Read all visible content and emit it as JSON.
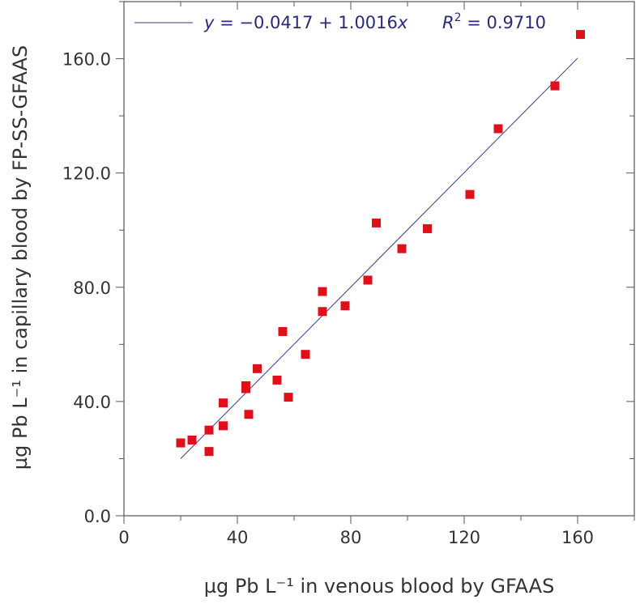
{
  "chart_data": {
    "type": "scatter",
    "xlabel": "µg Pb L⁻¹ in venous blood by GFAAS",
    "ylabel": "µg Pb L⁻¹ in capillary blood by FP-SS-GFAAS",
    "xlim": [
      0,
      180
    ],
    "ylim": [
      0,
      180
    ],
    "x_ticks": [
      "0",
      "40",
      "80",
      "120",
      "160"
    ],
    "y_ticks": [
      "0.0",
      "40.0",
      "80.0",
      "120.0",
      "160.0"
    ],
    "marker_color": "#e0101a",
    "line_color": "#3a3a8a",
    "points": [
      [
        20,
        25.5
      ],
      [
        24,
        26.5
      ],
      [
        30,
        30
      ],
      [
        30,
        22.5
      ],
      [
        35,
        31.5
      ],
      [
        35,
        39.5
      ],
      [
        43,
        45.5
      ],
      [
        43,
        44.5
      ],
      [
        44,
        35.5
      ],
      [
        47,
        51.5
      ],
      [
        54,
        47.5
      ],
      [
        56,
        64.5
      ],
      [
        58,
        41.5
      ],
      [
        64,
        56.5
      ],
      [
        70,
        78.5
      ],
      [
        70,
        71.5
      ],
      [
        78,
        73.5
      ],
      [
        86,
        82.5
      ],
      [
        89,
        102.5
      ],
      [
        98,
        93.5
      ],
      [
        107,
        100.5
      ],
      [
        122,
        112.5
      ],
      [
        132,
        135.5
      ],
      [
        152,
        150.5
      ],
      [
        161,
        168.5
      ]
    ],
    "fit": {
      "intercept": -0.0417,
      "slope": 1.0016,
      "x_range": [
        20,
        160
      ],
      "equation_lhs": "y",
      "equation_rhs": " = −0.0417 + 1.0016",
      "equation_var": "x",
      "r2_label": "R",
      "r2_exp": "2",
      "r2_value": " = 0.9710"
    }
  }
}
